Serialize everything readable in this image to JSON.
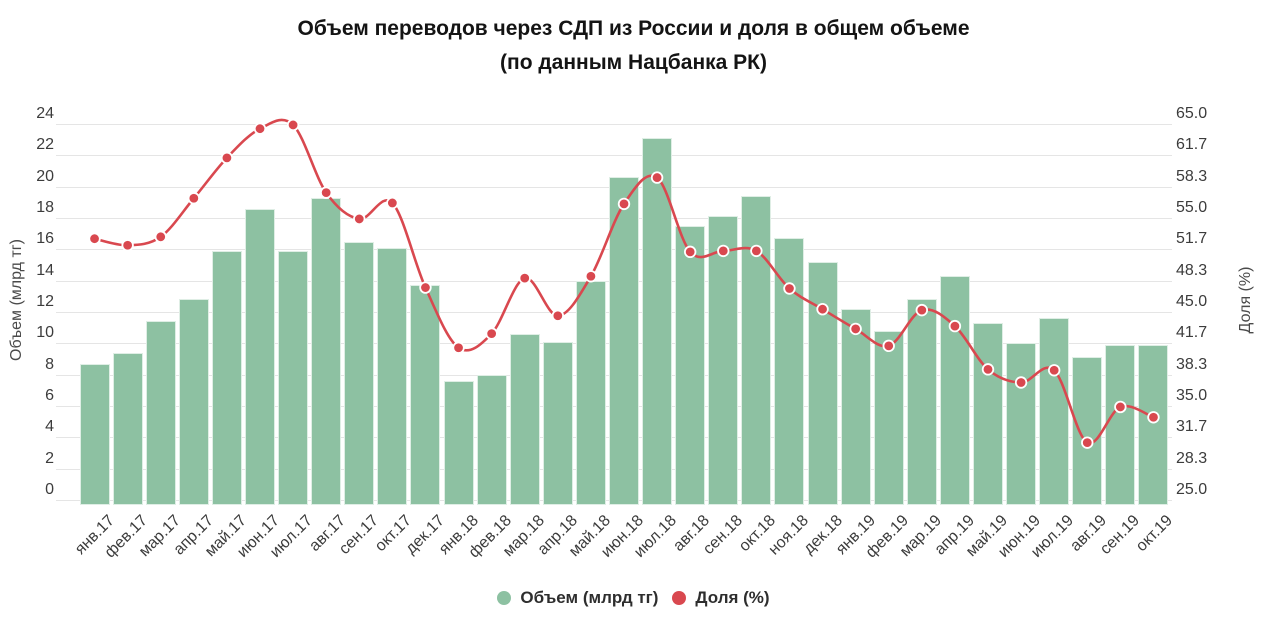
{
  "title": {
    "line1": "Объем переводов через СДП из России и доля в общем объеме",
    "line2": "(по данным Нацбанка РК)"
  },
  "chart_data": {
    "type": "bar+line combo",
    "title": "Объем переводов через СДП из России и доля в общем объеме (по данным Нацбанка РК)",
    "grid": true,
    "legend_position": "bottom",
    "categories": [
      "янв.17",
      "фев.17",
      "мар.17",
      "апр.17",
      "май.17",
      "июн.17",
      "июл.17",
      "авг.17",
      "сен.17",
      "окт.17",
      "дек.17",
      "янв.18",
      "фев.18",
      "мар.18",
      "апр.18",
      "май.18",
      "июн.18",
      "июл.18",
      "авг.18",
      "сен.18",
      "окт.18",
      "ноя.18",
      "дек.18",
      "янв.19",
      "фев.19",
      "мар.19",
      "апр.19",
      "май.19",
      "июн.19",
      "июл.19",
      "авг.19",
      "сен.19",
      "окт.19"
    ],
    "series": [
      {
        "name": "Объем (млрд тг)",
        "type": "bar",
        "axis": "left",
        "color": "#8dc1a2",
        "values": [
          8.7,
          9.4,
          11.4,
          12.8,
          15.9,
          18.6,
          15.9,
          19.3,
          16.5,
          16.1,
          13.7,
          7.6,
          8.0,
          10.6,
          10.1,
          14.0,
          20.6,
          23.1,
          17.5,
          18.1,
          19.4,
          16.7,
          15.2,
          12.2,
          10.8,
          12.8,
          14.3,
          11.3,
          10.0,
          11.6,
          9.1,
          9.9,
          9.9
        ]
      },
      {
        "name": "Доля (%)",
        "type": "line",
        "axis": "right",
        "color": "#d9484f",
        "values": [
          52.8,
          52.1,
          53.0,
          57.1,
          61.4,
          64.5,
          64.9,
          57.7,
          54.9,
          56.6,
          47.6,
          41.2,
          42.7,
          48.6,
          44.6,
          48.8,
          56.5,
          59.3,
          51.4,
          51.5,
          51.5,
          47.5,
          45.3,
          43.2,
          41.4,
          45.2,
          43.5,
          38.9,
          37.5,
          38.8,
          31.1,
          34.9,
          33.8
        ]
      }
    ],
    "left_axis": {
      "label": "Объем (млрд тг)",
      "min": 0,
      "max": 24,
      "step": 2,
      "ticks": [
        "24",
        "22",
        "20",
        "18",
        "16",
        "14",
        "12",
        "10",
        "8",
        "6",
        "4",
        "2",
        "0"
      ]
    },
    "right_axis": {
      "label": "Доля (%)",
      "min": 25.0,
      "max": 65.0,
      "ticks": [
        "65.0",
        "61.7",
        "58.3",
        "55.0",
        "51.7",
        "48.3",
        "45.0",
        "41.7",
        "38.3",
        "35.0",
        "31.7",
        "28.3",
        "25.0"
      ]
    }
  },
  "legend": {
    "items": [
      {
        "label": "Объем (млрд тг)",
        "color": "#8dc1a2"
      },
      {
        "label": "Доля (%)",
        "color": "#d9484f"
      }
    ]
  },
  "colors": {
    "bar": "#8dc1a2",
    "line": "#d9484f",
    "gridline": "#e5e5e5",
    "tick_text": "#3c3c3c",
    "title_text": "#141414",
    "background": "#ffffff"
  }
}
